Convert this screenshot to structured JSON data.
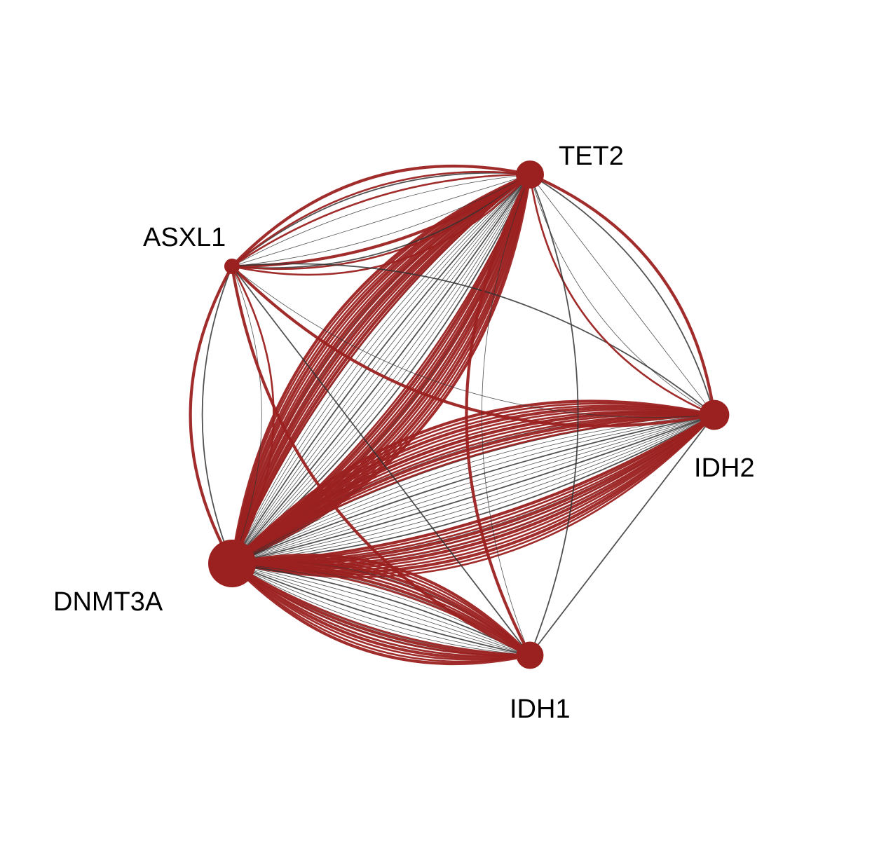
{
  "diagram": {
    "type": "network",
    "colors": {
      "red_edge": "#9b2120",
      "dark_edge": "#333333",
      "node_fill": "#9b2120"
    },
    "nodes": [
      {
        "id": "DNMT3A",
        "label": "DNMT3A",
        "size": 1.0
      },
      {
        "id": "ASXL1",
        "label": "ASXL1",
        "size": 0.18
      },
      {
        "id": "TET2",
        "label": "TET2",
        "size": 0.5
      },
      {
        "id": "IDH2",
        "label": "IDH2",
        "size": 0.55
      },
      {
        "id": "IDH1",
        "label": "IDH1",
        "size": 0.48
      }
    ],
    "edge_groups": [
      {
        "source": "DNMT3A",
        "target": "TET2",
        "red": 28,
        "dark": 22
      },
      {
        "source": "DNMT3A",
        "target": "IDH2",
        "red": 24,
        "dark": 22
      },
      {
        "source": "DNMT3A",
        "target": "IDH1",
        "red": 16,
        "dark": 14
      },
      {
        "source": "DNMT3A",
        "target": "ASXL1",
        "red": 2,
        "dark": 2
      },
      {
        "source": "ASXL1",
        "target": "TET2",
        "red": 6,
        "dark": 5
      },
      {
        "source": "ASXL1",
        "target": "IDH2",
        "red": 1,
        "dark": 2
      },
      {
        "source": "ASXL1",
        "target": "IDH1",
        "red": 1,
        "dark": 1
      },
      {
        "source": "TET2",
        "target": "IDH2",
        "red": 2,
        "dark": 3
      },
      {
        "source": "TET2",
        "target": "IDH1",
        "red": 1,
        "dark": 2
      },
      {
        "source": "IDH2",
        "target": "IDH1",
        "red": 0,
        "dark": 1
      }
    ]
  }
}
